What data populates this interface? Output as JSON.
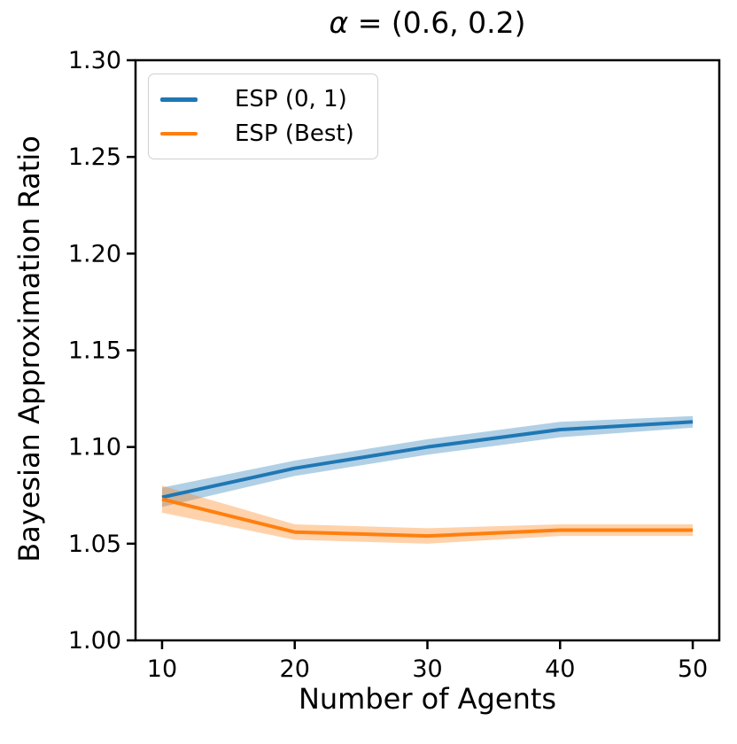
{
  "chart_data": {
    "type": "line",
    "title": "α = (0.6, 0.2)",
    "title_parts": {
      "symbol": "α",
      "rest": " = (0.6, 0.2)"
    },
    "xlabel": "Number of Agents",
    "ylabel": "Bayesian Approximation Ratio",
    "x": [
      10,
      20,
      30,
      40,
      50
    ],
    "xlim": [
      8,
      52
    ],
    "ylim": [
      1.0,
      1.3
    ],
    "xtick_labels": [
      "10",
      "20",
      "30",
      "40",
      "50"
    ],
    "ytick_labels": [
      "1.00",
      "1.05",
      "1.10",
      "1.15",
      "1.20",
      "1.25",
      "1.30"
    ],
    "grid": false,
    "legend_position": "upper-left",
    "axis_color": "#000000",
    "band_opacity": 0.35,
    "series": [
      {
        "name": "ESP (0, 1)",
        "color": "#1f77b4",
        "values": [
          1.074,
          1.089,
          1.1,
          1.109,
          1.113
        ],
        "band_halfwidth": [
          0.005,
          0.004,
          0.004,
          0.004,
          0.003
        ]
      },
      {
        "name": "ESP (Best)",
        "color": "#ff7f0e",
        "values": [
          1.073,
          1.056,
          1.054,
          1.057,
          1.057
        ],
        "band_halfwidth": [
          0.007,
          0.004,
          0.004,
          0.003,
          0.003
        ]
      }
    ]
  }
}
